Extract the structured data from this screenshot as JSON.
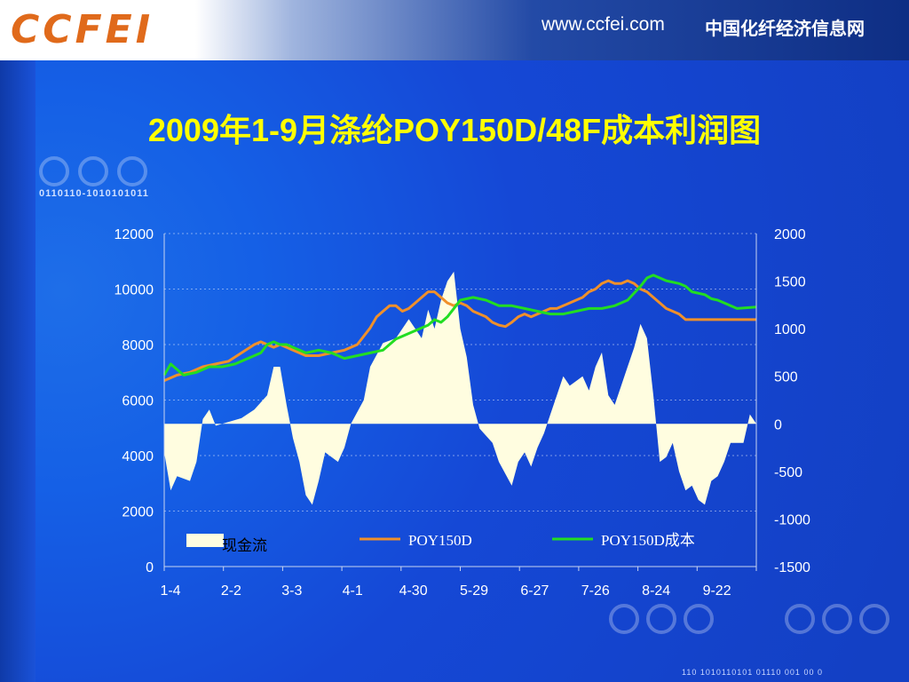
{
  "header": {
    "logo_text": "CCFEI",
    "url": "www.ccfei.com",
    "site_name": "中国化纤经济信息网"
  },
  "decor": {
    "binary_text": "0110110-1010101011",
    "bottom_binary": "110 1010110101 01110 001 00 0"
  },
  "colors": {
    "background": "#1a4fd0",
    "title": "#ffff00",
    "cash_flow_fill": "#fffde0",
    "price_line": "#f0902a",
    "cost_line": "#22dd22"
  },
  "chart_data": {
    "type": "line",
    "title": "2009年1-9月涤纶POY150D/48F成本利润图",
    "x_tick_labels": [
      "1-4",
      "2-2",
      "3-3",
      "4-1",
      "4-30",
      "5-29",
      "6-27",
      "7-26",
      "8-24",
      "9-22"
    ],
    "left_axis": {
      "ticks": [
        0,
        2000,
        4000,
        6000,
        8000,
        10000,
        12000
      ],
      "ylim": [
        0,
        12000
      ]
    },
    "right_axis": {
      "ticks": [
        -1500,
        -1000,
        -500,
        0,
        500,
        1000,
        1500,
        2000
      ],
      "ylim": [
        -1500,
        2000
      ]
    },
    "grid": "horizontal, dashed",
    "legend_position": "bottom",
    "series": [
      {
        "name": "现金流",
        "type": "area",
        "axis": "right",
        "points": [
          [
            0,
            -300
          ],
          [
            1,
            -700
          ],
          [
            2,
            -550
          ],
          [
            4,
            -600
          ],
          [
            5,
            -400
          ],
          [
            6,
            50
          ],
          [
            7,
            150
          ],
          [
            8,
            -20
          ],
          [
            10,
            20
          ],
          [
            12,
            60
          ],
          [
            14,
            150
          ],
          [
            16,
            300
          ],
          [
            17,
            600
          ],
          [
            18,
            600
          ],
          [
            19,
            200
          ],
          [
            20,
            -150
          ],
          [
            21,
            -400
          ],
          [
            22,
            -750
          ],
          [
            23,
            -850
          ],
          [
            24,
            -600
          ],
          [
            25,
            -300
          ],
          [
            27,
            -400
          ],
          [
            28,
            -250
          ],
          [
            29,
            0
          ],
          [
            31,
            250
          ],
          [
            32,
            600
          ],
          [
            34,
            850
          ],
          [
            36,
            900
          ],
          [
            38,
            1100
          ],
          [
            40,
            900
          ],
          [
            41,
            1200
          ],
          [
            42,
            1000
          ],
          [
            43,
            1300
          ],
          [
            44,
            1500
          ],
          [
            45,
            1600
          ],
          [
            46,
            1000
          ],
          [
            47,
            700
          ],
          [
            48,
            200
          ],
          [
            49,
            -50
          ],
          [
            51,
            -200
          ],
          [
            52,
            -400
          ],
          [
            54,
            -650
          ],
          [
            55,
            -400
          ],
          [
            56,
            -300
          ],
          [
            57,
            -450
          ],
          [
            58,
            -250
          ],
          [
            59,
            -100
          ],
          [
            60,
            100
          ],
          [
            61,
            300
          ],
          [
            62,
            500
          ],
          [
            63,
            400
          ],
          [
            64,
            450
          ],
          [
            65,
            500
          ],
          [
            66,
            350
          ],
          [
            67,
            600
          ],
          [
            68,
            750
          ],
          [
            69,
            300
          ],
          [
            70,
            200
          ],
          [
            71,
            400
          ],
          [
            72,
            600
          ],
          [
            73,
            800
          ],
          [
            74,
            1050
          ],
          [
            75,
            900
          ],
          [
            76,
            300
          ],
          [
            77,
            -400
          ],
          [
            78,
            -350
          ],
          [
            79,
            -200
          ],
          [
            80,
            -500
          ],
          [
            81,
            -700
          ],
          [
            82,
            -650
          ],
          [
            83,
            -800
          ],
          [
            84,
            -850
          ],
          [
            85,
            -600
          ],
          [
            86,
            -550
          ],
          [
            87,
            -400
          ],
          [
            88,
            -200
          ],
          [
            89,
            -200
          ],
          [
            90,
            -200
          ],
          [
            91,
            100
          ],
          [
            92,
            0
          ]
        ]
      },
      {
        "name": "POY150D",
        "type": "line",
        "axis": "left",
        "points": [
          [
            0,
            6700
          ],
          [
            2,
            6900
          ],
          [
            4,
            7000
          ],
          [
            6,
            7200
          ],
          [
            8,
            7300
          ],
          [
            10,
            7400
          ],
          [
            12,
            7700
          ],
          [
            14,
            8000
          ],
          [
            15,
            8100
          ],
          [
            16,
            8000
          ],
          [
            17,
            7900
          ],
          [
            18,
            8000
          ],
          [
            19,
            7900
          ],
          [
            20,
            7800
          ],
          [
            21,
            7700
          ],
          [
            22,
            7600
          ],
          [
            24,
            7600
          ],
          [
            26,
            7700
          ],
          [
            28,
            7800
          ],
          [
            29,
            7900
          ],
          [
            30,
            8000
          ],
          [
            31,
            8300
          ],
          [
            32,
            8600
          ],
          [
            33,
            9000
          ],
          [
            34,
            9200
          ],
          [
            35,
            9400
          ],
          [
            36,
            9400
          ],
          [
            37,
            9200
          ],
          [
            38,
            9300
          ],
          [
            39,
            9500
          ],
          [
            40,
            9700
          ],
          [
            41,
            9900
          ],
          [
            42,
            9900
          ],
          [
            43,
            9700
          ],
          [
            44,
            9500
          ],
          [
            45,
            9400
          ],
          [
            46,
            9500
          ],
          [
            47,
            9400
          ],
          [
            48,
            9200
          ],
          [
            49,
            9100
          ],
          [
            50,
            9000
          ],
          [
            51,
            8800
          ],
          [
            52,
            8700
          ],
          [
            53,
            8650
          ],
          [
            54,
            8800
          ],
          [
            55,
            9000
          ],
          [
            56,
            9100
          ],
          [
            57,
            9000
          ],
          [
            58,
            9100
          ],
          [
            59,
            9200
          ],
          [
            60,
            9300
          ],
          [
            61,
            9300
          ],
          [
            62,
            9400
          ],
          [
            63,
            9500
          ],
          [
            64,
            9600
          ],
          [
            65,
            9700
          ],
          [
            66,
            9900
          ],
          [
            67,
            10000
          ],
          [
            68,
            10200
          ],
          [
            69,
            10300
          ],
          [
            70,
            10200
          ],
          [
            71,
            10200
          ],
          [
            72,
            10300
          ],
          [
            73,
            10200
          ],
          [
            74,
            10000
          ],
          [
            75,
            9900
          ],
          [
            76,
            9700
          ],
          [
            77,
            9500
          ],
          [
            78,
            9300
          ],
          [
            79,
            9200
          ],
          [
            80,
            9100
          ],
          [
            81,
            8900
          ],
          [
            82,
            8900
          ],
          [
            83,
            8900
          ],
          [
            85,
            8900
          ],
          [
            87,
            8900
          ],
          [
            89,
            8900
          ],
          [
            92,
            8900
          ]
        ]
      },
      {
        "name": "POY150D成本",
        "type": "line",
        "axis": "left",
        "points": [
          [
            0,
            6900
          ],
          [
            1,
            7300
          ],
          [
            2,
            7100
          ],
          [
            3,
            6900
          ],
          [
            5,
            7000
          ],
          [
            7,
            7200
          ],
          [
            9,
            7200
          ],
          [
            11,
            7300
          ],
          [
            13,
            7500
          ],
          [
            15,
            7700
          ],
          [
            16,
            8000
          ],
          [
            17,
            8100
          ],
          [
            18,
            8000
          ],
          [
            19,
            8000
          ],
          [
            20,
            7900
          ],
          [
            21,
            7800
          ],
          [
            22,
            7700
          ],
          [
            24,
            7800
          ],
          [
            26,
            7700
          ],
          [
            28,
            7500
          ],
          [
            30,
            7600
          ],
          [
            32,
            7700
          ],
          [
            34,
            7800
          ],
          [
            36,
            8200
          ],
          [
            38,
            8400
          ],
          [
            40,
            8600
          ],
          [
            41,
            8700
          ],
          [
            42,
            8900
          ],
          [
            43,
            8800
          ],
          [
            44,
            9000
          ],
          [
            45,
            9300
          ],
          [
            46,
            9600
          ],
          [
            48,
            9700
          ],
          [
            50,
            9600
          ],
          [
            52,
            9400
          ],
          [
            54,
            9400
          ],
          [
            56,
            9300
          ],
          [
            58,
            9200
          ],
          [
            60,
            9100
          ],
          [
            62,
            9100
          ],
          [
            64,
            9200
          ],
          [
            66,
            9300
          ],
          [
            68,
            9300
          ],
          [
            70,
            9400
          ],
          [
            72,
            9600
          ],
          [
            74,
            10100
          ],
          [
            75,
            10400
          ],
          [
            76,
            10500
          ],
          [
            77,
            10400
          ],
          [
            78,
            10300
          ],
          [
            80,
            10200
          ],
          [
            81,
            10100
          ],
          [
            82,
            9900
          ],
          [
            84,
            9800
          ],
          [
            85,
            9650
          ],
          [
            86,
            9600
          ],
          [
            87,
            9500
          ],
          [
            88,
            9400
          ],
          [
            89,
            9300
          ],
          [
            92,
            9350
          ]
        ]
      }
    ]
  }
}
